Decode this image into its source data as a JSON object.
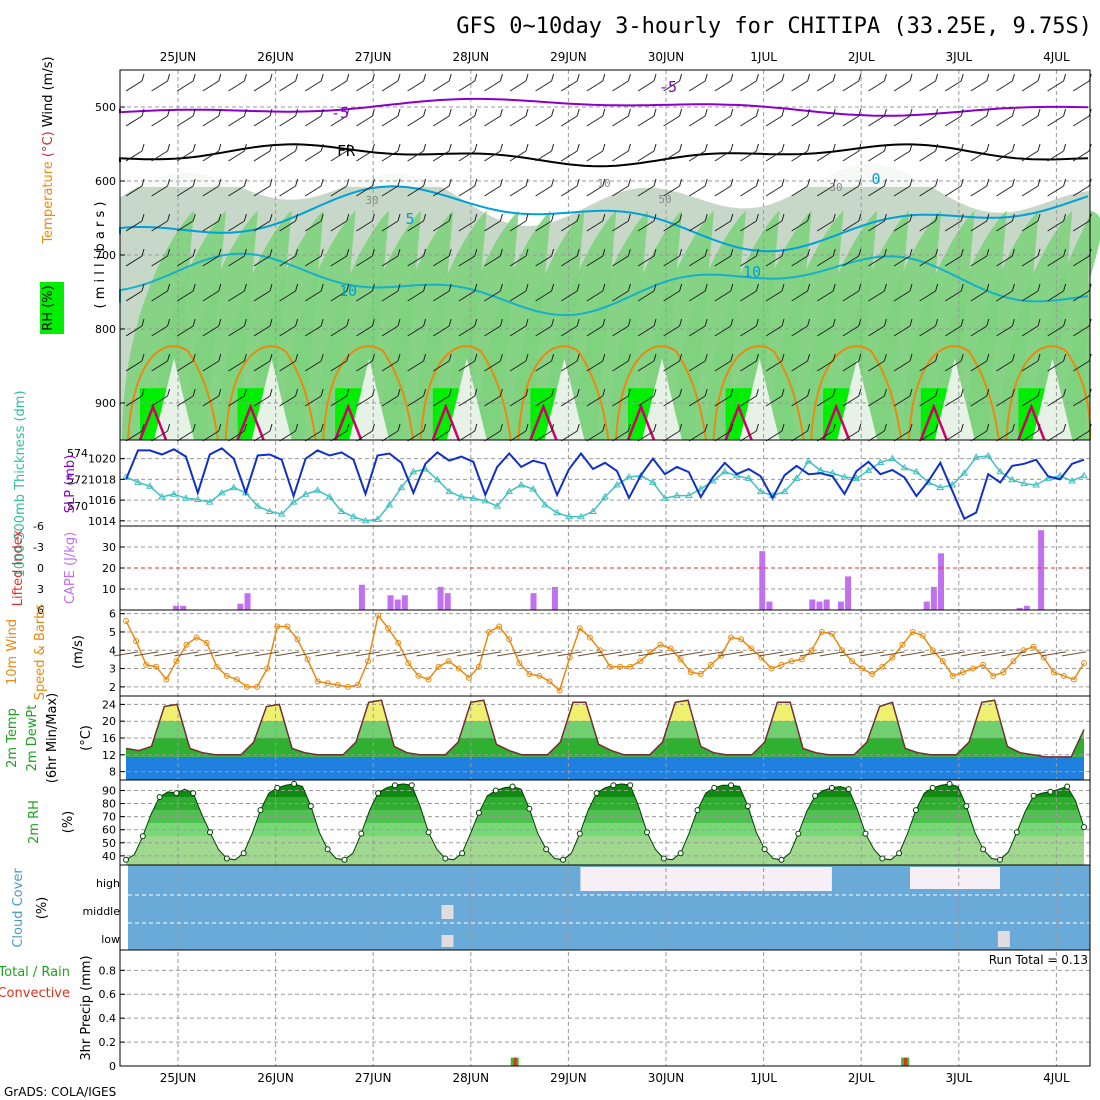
{
  "title": "GFS 0~10day 3-hourly for CHITIPA (33.25E, 9.75S)",
  "footer": "GrADS: COLA/IGES",
  "dates": [
    "25JUN",
    "26JUN",
    "27JUN",
    "28JUN",
    "29JUN",
    "30JUN",
    "1JUL",
    "2JUL",
    "3JUL",
    "4JUL"
  ],
  "colors": {
    "grid": "#9a9a9a",
    "rh_light": "#c8d8c8",
    "rh_mid": "#7ed37e",
    "rh_bright": "#00ee00",
    "purple": "#8a00c8",
    "cyan": "#00a0d8",
    "orange": "#e88a10",
    "magenta": "#d0006a",
    "blue": "#1030c8",
    "teal": "#40c0c0",
    "cape": "#c070f0",
    "cloud": "#6aaad8",
    "temp_yellow": "#f0f070",
    "temp_green": "#30b030",
    "dew_blue": "#2080e0"
  },
  "chart_data": [
    {
      "type": "contour",
      "name": "upper_air",
      "ylabel_parts": [
        "RH (%)",
        "Temperature",
        "(°C)",
        "Wind (m/s)"
      ],
      "ylabel_unit": "( m i l l i b a r s )",
      "yticks": [
        500,
        600,
        700,
        800,
        900
      ],
      "ylim": [
        450,
        950
      ],
      "contour_labels": [
        "-5",
        "-5",
        "FR",
        "0",
        "5",
        "10",
        "10",
        "30",
        "30",
        "50",
        "10"
      ]
    },
    {
      "type": "line",
      "name": "thickness_slp",
      "ylabel_left": "1000-500mb Thickness (dm)",
      "ylabel_right": "SLP (mb)",
      "yticks_left": [
        570,
        572,
        574
      ],
      "yticks_right": [
        1014,
        1016,
        1018,
        1020
      ],
      "slp": [
        1018.0,
        1020.8,
        1020.8,
        1020.4,
        1020.9,
        1020.2,
        1016.7,
        1020.4,
        1021.0,
        1020.0,
        1016.7,
        1020.3,
        1020.4,
        1019.9,
        1016.4,
        1020.0,
        1020.8,
        1020.3,
        1020.6,
        1019.9,
        1016.6,
        1020.3,
        1020.5,
        1019.6,
        1016.7,
        1019.5,
        1020.6,
        1019.8,
        1020.2,
        1019.7,
        1016.5,
        1019.2,
        1020.5,
        1019.2,
        1019.8,
        1019.5,
        1016.5,
        1019.0,
        1020.5,
        1019.0,
        1019.6,
        1018.8,
        1016.2,
        1018.4,
        1020.0,
        1018.5,
        1019.2,
        1018.7,
        1016.3,
        1018.2,
        1019.6,
        1018.5,
        1019.0,
        1018.3,
        1016.2,
        1018.4,
        1019.3,
        1018.5,
        1018.6,
        1018.3,
        1016.6,
        1018.8,
        1019.7,
        1018.5,
        1018.9,
        1018.2,
        1016.4,
        1017.8,
        1019.6,
        1016.9,
        1014.2,
        1014.8,
        1018.5,
        1017.7,
        1019.3,
        1019.5,
        1019.9,
        1018.3,
        1018.0,
        1019.5,
        1019.9
      ],
      "thickness": [
        572.2,
        571.8,
        571.5,
        570.7,
        570.9,
        570.6,
        570.5,
        570.3,
        571.0,
        571.4,
        571.0,
        570.0,
        569.6,
        569.4,
        570.3,
        570.9,
        571.2,
        570.7,
        569.6,
        569.2,
        568.9,
        569.0,
        570.1,
        571.4,
        572.6,
        572.8,
        572.0,
        571.1,
        570.7,
        570.6,
        570.4,
        570.0,
        571.1,
        571.6,
        571.3,
        570.1,
        569.5,
        569.2,
        569.2,
        569.6,
        570.7,
        571.6,
        572.2,
        572.3,
        571.8,
        570.6,
        570.8,
        570.8,
        571.3,
        571.9,
        572.6,
        572.3,
        572.1,
        571.1,
        570.8,
        571.1,
        572.1,
        573.4,
        572.7,
        572.5,
        572.2,
        572.1,
        572.7,
        573.3,
        573.6,
        572.9,
        572.6,
        571.8,
        571.4,
        571.6,
        572.5,
        573.7,
        573.8,
        572.6,
        572.0,
        571.7,
        571.6,
        572.1,
        572.3,
        571.9,
        572.3
      ]
    },
    {
      "type": "bar",
      "name": "cape_li",
      "ylabel_left": "Lifted Index",
      "ylabel_right": "CAPE (J/kg)",
      "yticks_left": [
        "-6",
        "-3",
        "0",
        "3",
        "6"
      ],
      "yticks_right": [
        10,
        20,
        30
      ],
      "cape": [
        0,
        0,
        0,
        0,
        0,
        0,
        0,
        2,
        2,
        0,
        0,
        0,
        0,
        0,
        0,
        0,
        3,
        8,
        0,
        0,
        0,
        0,
        0,
        0,
        0,
        0,
        0,
        0,
        0,
        0,
        0,
        0,
        0,
        12,
        0,
        0,
        0,
        7,
        5,
        7,
        0,
        0,
        0,
        0,
        11,
        8,
        0,
        0,
        0,
        0,
        0,
        0,
        0,
        0,
        0,
        0,
        0,
        8,
        0,
        0,
        11,
        0,
        0,
        0,
        0,
        0,
        0,
        0,
        0,
        0,
        0,
        0,
        0,
        0,
        0,
        0,
        0,
        0,
        0,
        0,
        0,
        0,
        0,
        0,
        0,
        0,
        0,
        0,
        0,
        28,
        4,
        0,
        0,
        0,
        0,
        0,
        5,
        4,
        5,
        0,
        4,
        16,
        0,
        0,
        0,
        0,
        0,
        0,
        0,
        0,
        0,
        0,
        4,
        11,
        27,
        0,
        0,
        0,
        0,
        0,
        0,
        0,
        0,
        0,
        0,
        1,
        2,
        0,
        38,
        0,
        0,
        0,
        0,
        0,
        0
      ]
    },
    {
      "type": "line",
      "name": "wind10m",
      "ylabel": "10m Wind Speed & Barbs (m/s)",
      "ylabel_parts": [
        "10m Wind",
        "Speed",
        "& Barbs"
      ],
      "ylabel_unit": "(m/s)",
      "yticks": [
        2,
        3,
        4,
        5,
        6
      ],
      "ylim": [
        1.5,
        6.2
      ],
      "values": [
        5.6,
        4.5,
        3.2,
        3.1,
        2.4,
        3.4,
        4.3,
        4.7,
        4.4,
        3.1,
        2.6,
        2.4,
        2.0,
        2.0,
        3.0,
        5.3,
        5.3,
        4.6,
        3.5,
        2.3,
        2.2,
        2.1,
        2.0,
        2.1,
        3.4,
        5.9,
        5.2,
        4.4,
        3.3,
        2.6,
        2.4,
        3.1,
        3.4,
        3.0,
        2.5,
        3.1,
        5.0,
        5.3,
        4.6,
        3.3,
        2.7,
        2.6,
        2.3,
        1.8,
        3.6,
        5.2,
        4.7,
        4.0,
        3.1,
        3.1,
        3.1,
        3.4,
        3.9,
        4.3,
        4.1,
        3.5,
        2.8,
        2.7,
        3.2,
        3.7,
        4.7,
        4.6,
        4.1,
        3.6,
        3.0,
        3.2,
        3.4,
        3.5,
        4.0,
        5.0,
        4.9,
        4.0,
        3.4,
        3.0,
        2.7,
        3.1,
        3.6,
        4.3,
        5.0,
        4.8,
        4.0,
        3.4,
        2.6,
        2.8,
        3.0,
        3.2,
        2.6,
        2.8,
        3.4,
        4.0,
        4.2,
        3.6,
        2.8,
        2.6,
        2.4,
        3.3
      ]
    },
    {
      "type": "area",
      "name": "temperature",
      "ylabel_parts": [
        "2m Temp",
        "2m DewPt",
        "(6hr Min/Max)"
      ],
      "ylabel_unit": "(°C)",
      "yticks": [
        8,
        12,
        16,
        20,
        24
      ],
      "ylim": [
        6,
        26
      ],
      "temp": [
        13.5,
        13,
        14,
        23.5,
        24,
        13.5,
        12.5,
        12,
        12,
        12,
        15,
        23.5,
        24,
        13.5,
        12.5,
        12,
        12,
        12,
        15,
        24.5,
        25,
        14,
        12.5,
        12,
        12,
        12,
        15,
        24.5,
        25,
        14.5,
        13,
        12,
        12,
        12,
        15,
        24.5,
        24.5,
        14.5,
        13,
        12,
        12,
        12,
        15,
        24.5,
        25,
        14,
        12.5,
        12,
        12,
        12,
        15,
        24.5,
        24.5,
        13.5,
        12.5,
        12,
        12,
        12,
        15,
        23.5,
        24.5,
        13.5,
        12.5,
        12,
        12,
        12,
        15,
        24.5,
        25,
        14,
        12.5,
        12,
        11.5,
        11.5,
        11.5,
        18
      ]
    },
    {
      "type": "area",
      "name": "rh2m",
      "ylabel": "2m RH",
      "ylabel_unit": "(%)",
      "yticks": [
        40,
        50,
        60,
        70,
        80,
        90
      ],
      "ylim": [
        33,
        98
      ],
      "values": [
        37,
        41,
        55,
        72,
        85,
        89,
        88,
        91,
        88,
        72,
        58,
        45,
        38,
        37,
        42,
        57,
        75,
        88,
        92,
        94,
        95,
        93,
        78,
        58,
        45,
        38,
        37,
        42,
        57,
        75,
        88,
        92,
        94,
        95,
        94,
        78,
        58,
        45,
        38,
        37,
        42,
        57,
        73,
        86,
        90,
        92,
        93,
        91,
        76,
        57,
        45,
        38,
        37,
        42,
        57,
        75,
        88,
        92,
        94,
        95,
        94,
        78,
        58,
        45,
        38,
        37,
        42,
        57,
        75,
        88,
        92,
        94,
        94,
        93,
        78,
        58,
        45,
        38,
        37,
        42,
        57,
        74,
        86,
        90,
        92,
        93,
        91,
        76,
        57,
        45,
        38,
        37,
        42,
        57,
        75,
        88,
        92,
        94,
        95,
        93,
        78,
        58,
        45,
        38,
        37,
        43,
        58,
        74,
        86,
        88,
        89,
        91,
        93,
        82,
        62
      ]
    },
    {
      "type": "heatmap",
      "name": "cloud_cover",
      "ylabel": "Cloud Cover",
      "ylabel_unit": "(%)",
      "levels": [
        "high",
        "middle",
        "low"
      ]
    },
    {
      "type": "bar",
      "name": "precip",
      "ylabel_parts": [
        "Total / Rain",
        "Convective"
      ],
      "ylabel": "3hr Precip (mm)",
      "yticks": [
        "0",
        "0.2",
        "0.4",
        "0.6",
        "0.8"
      ],
      "ylim": [
        0,
        0.97
      ],
      "run_total": "Run Total = 0.13",
      "bars": [
        {
          "day": 3.45,
          "value": 0.07
        },
        {
          "day": 7.45,
          "value": 0.07
        }
      ]
    }
  ]
}
